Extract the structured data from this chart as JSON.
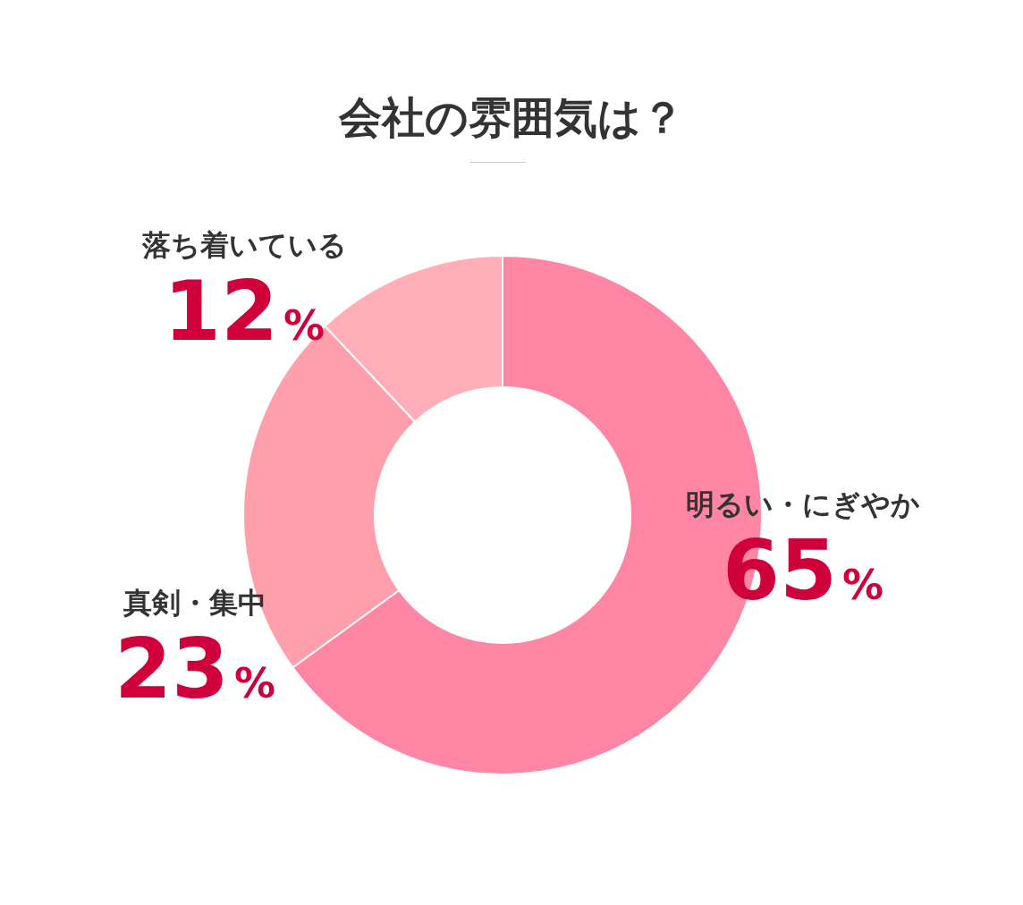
{
  "chart_data": {
    "type": "donut",
    "title": "会社の雰囲気は？",
    "categories": [
      "明るい・にぎやか",
      "真剣・集中",
      "落ち着いている"
    ],
    "values": [
      65,
      23,
      12
    ],
    "colors": [
      "#ff85a5",
      "#ff9fab",
      "#ffaeb8"
    ],
    "value_labels": [
      "65%",
      "23%",
      "12%"
    ],
    "legend": false
  }
}
